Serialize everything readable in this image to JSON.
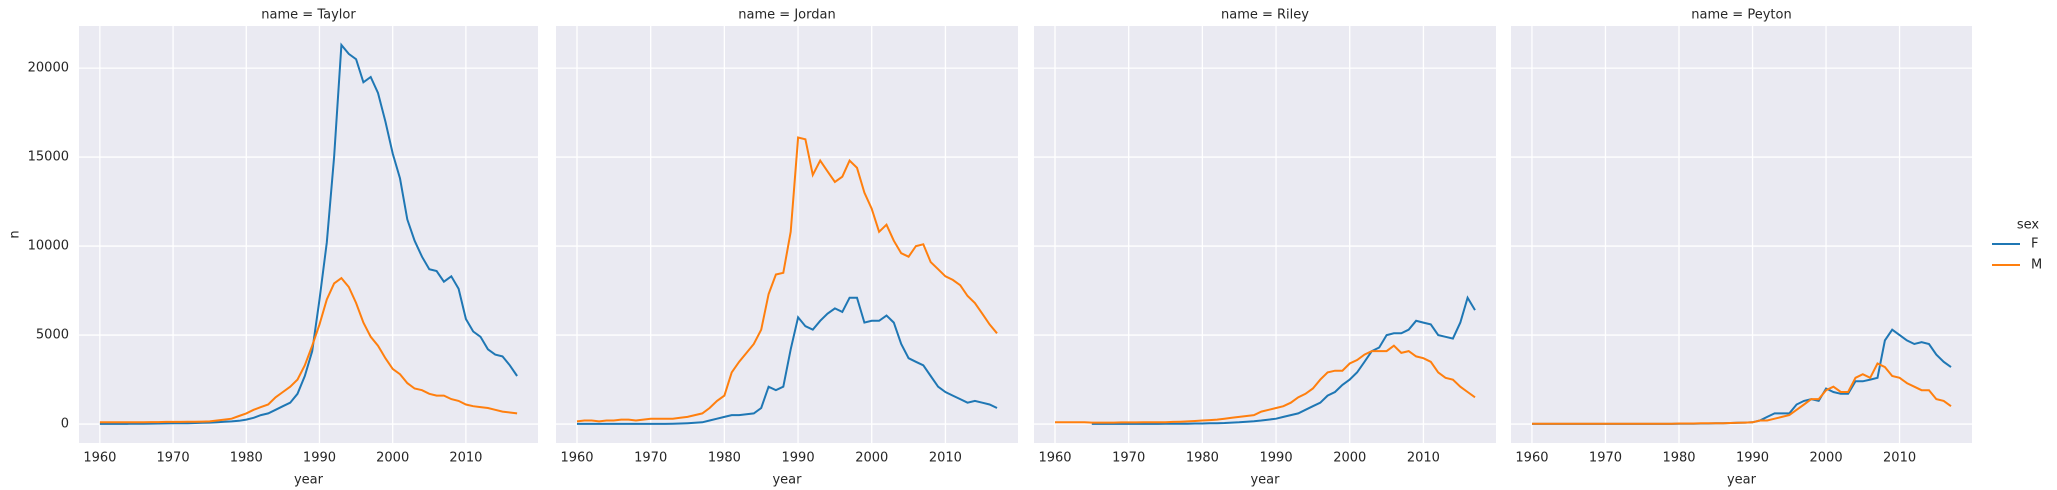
{
  "chart_data": [
    {
      "type": "line",
      "title": "name = Taylor",
      "xlabel": "year",
      "ylabel": "n",
      "legend_title": "sex",
      "legend": "right",
      "grid": true,
      "xlim": [
        1957.15,
        2019.85
      ],
      "xticks": [
        1960,
        1970,
        1980,
        1990,
        2000,
        2010
      ],
      "ylim": [
        -1065,
        22365
      ],
      "yticks": [
        0,
        5000,
        10000,
        15000,
        20000
      ],
      "x": [
        1960,
        1961,
        1962,
        1963,
        1964,
        1965,
        1966,
        1967,
        1968,
        1969,
        1970,
        1971,
        1972,
        1973,
        1974,
        1975,
        1976,
        1977,
        1978,
        1979,
        1980,
        1981,
        1982,
        1983,
        1984,
        1985,
        1986,
        1987,
        1988,
        1989,
        1990,
        1991,
        1992,
        1993,
        1994,
        1995,
        1996,
        1997,
        1998,
        1999,
        2000,
        2001,
        2002,
        2003,
        2004,
        2005,
        2006,
        2007,
        2008,
        2009,
        2010,
        2011,
        2012,
        2013,
        2014,
        2015,
        2016,
        2017
      ],
      "series": [
        {
          "name": "F",
          "color": "#1f77b4",
          "values": [
            10,
            10,
            10,
            10,
            15,
            15,
            20,
            25,
            30,
            35,
            40,
            45,
            50,
            60,
            70,
            80,
            100,
            130,
            150,
            180,
            250,
            350,
            500,
            600,
            800,
            1000,
            1200,
            1700,
            2700,
            4100,
            7000,
            10200,
            15000,
            21300,
            20800,
            20500,
            19200,
            19500,
            18600,
            17000,
            15200,
            13800,
            11500,
            10300,
            9400,
            8700,
            8600,
            8000,
            8300,
            7600,
            5900,
            5200,
            4900,
            4200,
            3900,
            3800,
            3300,
            2700
          ]
        },
        {
          "name": "M",
          "color": "#ff7f0e",
          "values": [
            100,
            100,
            100,
            100,
            100,
            100,
            100,
            110,
            110,
            120,
            120,
            120,
            130,
            130,
            140,
            150,
            200,
            250,
            300,
            450,
            600,
            800,
            950,
            1100,
            1500,
            1800,
            2100,
            2500,
            3300,
            4400,
            5600,
            7000,
            7900,
            8200,
            7700,
            6800,
            5700,
            4900,
            4400,
            3700,
            3100,
            2800,
            2300,
            2000,
            1900,
            1700,
            1600,
            1600,
            1400,
            1300,
            1100,
            1000,
            950,
            900,
            800,
            700,
            650,
            600
          ]
        }
      ]
    },
    {
      "type": "line",
      "title": "name = Jordan",
      "xlabel": "year",
      "grid": true,
      "xlim": [
        1957.15,
        2019.85
      ],
      "xticks": [
        1960,
        1970,
        1980,
        1990,
        2000,
        2010
      ],
      "ylim": [
        -1065,
        22365
      ],
      "yticks": [
        0,
        5000,
        10000,
        15000,
        20000
      ],
      "x": [
        1960,
        1961,
        1962,
        1963,
        1964,
        1965,
        1966,
        1967,
        1968,
        1969,
        1970,
        1971,
        1972,
        1973,
        1974,
        1975,
        1976,
        1977,
        1978,
        1979,
        1980,
        1981,
        1982,
        1983,
        1984,
        1985,
        1986,
        1987,
        1988,
        1989,
        1990,
        1991,
        1992,
        1993,
        1994,
        1995,
        1996,
        1997,
        1998,
        1999,
        2000,
        2001,
        2002,
        2003,
        2004,
        2005,
        2006,
        2007,
        2008,
        2009,
        2010,
        2011,
        2012,
        2013,
        2014,
        2015,
        2016,
        2017
      ],
      "series": [
        {
          "name": "F",
          "color": "#1f77b4",
          "values": [
            10,
            10,
            10,
            10,
            10,
            10,
            10,
            10,
            10,
            10,
            10,
            10,
            10,
            20,
            30,
            50,
            70,
            100,
            200,
            300,
            400,
            500,
            500,
            550,
            600,
            900,
            2100,
            1900,
            2100,
            4200,
            6000,
            5500,
            5300,
            5800,
            6200,
            6500,
            6300,
            7100,
            7100,
            5700,
            5800,
            5800,
            6100,
            5700,
            4500,
            3700,
            3500,
            3300,
            2700,
            2100,
            1800,
            1600,
            1400,
            1200,
            1300,
            1200,
            1100,
            900
          ]
        },
        {
          "name": "M",
          "color": "#ff7f0e",
          "values": [
            150,
            200,
            200,
            150,
            200,
            200,
            250,
            250,
            200,
            250,
            300,
            300,
            300,
            300,
            350,
            400,
            500,
            600,
            900,
            1300,
            1600,
            2900,
            3500,
            4000,
            4500,
            5300,
            7300,
            8400,
            8500,
            10800,
            16100,
            16000,
            14000,
            14800,
            14200,
            13600,
            13900,
            14800,
            14400,
            13000,
            12100,
            10800,
            11200,
            10300,
            9600,
            9400,
            10000,
            10100,
            9100,
            8700,
            8300,
            8100,
            7800,
            7200,
            6800,
            6200,
            5600,
            5100
          ]
        }
      ]
    },
    {
      "type": "line",
      "title": "name = Riley",
      "xlabel": "year",
      "grid": true,
      "xlim": [
        1957.15,
        2019.85
      ],
      "xticks": [
        1960,
        1970,
        1980,
        1990,
        2000,
        2010
      ],
      "ylim": [
        -1065,
        22365
      ],
      "yticks": [
        0,
        5000,
        10000,
        15000,
        20000
      ],
      "x": [
        1960,
        1961,
        1962,
        1963,
        1964,
        1965,
        1966,
        1967,
        1968,
        1969,
        1970,
        1971,
        1972,
        1973,
        1974,
        1975,
        1976,
        1977,
        1978,
        1979,
        1980,
        1981,
        1982,
        1983,
        1984,
        1985,
        1986,
        1987,
        1988,
        1989,
        1990,
        1991,
        1992,
        1993,
        1994,
        1995,
        1996,
        1997,
        1998,
        1999,
        2000,
        2001,
        2002,
        2003,
        2004,
        2005,
        2006,
        2007,
        2008,
        2009,
        2010,
        2011,
        2012,
        2013,
        2014,
        2015,
        2016,
        2017
      ],
      "series": [
        {
          "name": "F",
          "color": "#1f77b4",
          "values": [
            null,
            null,
            null,
            null,
            null,
            10,
            10,
            10,
            10,
            10,
            10,
            10,
            10,
            10,
            10,
            20,
            20,
            20,
            20,
            30,
            30,
            40,
            50,
            60,
            80,
            100,
            130,
            160,
            200,
            250,
            300,
            400,
            500,
            600,
            800,
            1000,
            1200,
            1600,
            1800,
            2200,
            2500,
            2900,
            3500,
            4100,
            4300,
            5000,
            5100,
            5100,
            5300,
            5800,
            5700,
            5600,
            5000,
            4900,
            4800,
            5700,
            7100,
            6400
          ]
        },
        {
          "name": "M",
          "color": "#ff7f0e",
          "values": [
            100,
            100,
            100,
            100,
            100,
            80,
            80,
            80,
            80,
            90,
            90,
            90,
            100,
            100,
            100,
            100,
            120,
            130,
            150,
            170,
            200,
            220,
            250,
            300,
            350,
            400,
            450,
            500,
            700,
            800,
            900,
            1000,
            1200,
            1500,
            1700,
            2000,
            2500,
            2900,
            3000,
            3000,
            3400,
            3600,
            3900,
            4100,
            4100,
            4100,
            4400,
            4000,
            4100,
            3800,
            3700,
            3500,
            2900,
            2600,
            2500,
            2100,
            1800,
            1500
          ]
        }
      ]
    },
    {
      "type": "line",
      "title": "name = Peyton",
      "xlabel": "year",
      "grid": true,
      "xlim": [
        1957.15,
        2019.85
      ],
      "xticks": [
        1960,
        1970,
        1980,
        1990,
        2000,
        2010
      ],
      "ylim": [
        -1065,
        22365
      ],
      "yticks": [
        0,
        5000,
        10000,
        15000,
        20000
      ],
      "x": [
        1960,
        1961,
        1962,
        1963,
        1964,
        1965,
        1966,
        1967,
        1968,
        1969,
        1970,
        1971,
        1972,
        1973,
        1974,
        1975,
        1976,
        1977,
        1978,
        1979,
        1980,
        1981,
        1982,
        1983,
        1984,
        1985,
        1986,
        1987,
        1988,
        1989,
        1990,
        1991,
        1992,
        1993,
        1994,
        1995,
        1996,
        1997,
        1998,
        1999,
        2000,
        2001,
        2002,
        2003,
        2004,
        2005,
        2006,
        2007,
        2008,
        2009,
        2010,
        2011,
        2012,
        2013,
        2014,
        2015,
        2016,
        2017
      ],
      "series": [
        {
          "name": "F",
          "color": "#1f77b4",
          "values": [
            10,
            10,
            10,
            10,
            10,
            10,
            10,
            10,
            10,
            10,
            10,
            10,
            10,
            10,
            10,
            10,
            10,
            10,
            10,
            10,
            20,
            20,
            20,
            30,
            30,
            40,
            50,
            60,
            70,
            80,
            100,
            200,
            400,
            600,
            600,
            600,
            1100,
            1300,
            1400,
            1300,
            2000,
            1800,
            1700,
            1700,
            2400,
            2400,
            2500,
            2600,
            4700,
            5300,
            5000,
            4700,
            4500,
            4600,
            4500,
            3900,
            3500,
            3200
          ]
        },
        {
          "name": "M",
          "color": "#ff7f0e",
          "values": [
            20,
            20,
            20,
            20,
            20,
            20,
            20,
            20,
            20,
            20,
            20,
            20,
            20,
            20,
            20,
            20,
            20,
            20,
            20,
            20,
            30,
            30,
            30,
            40,
            40,
            50,
            50,
            60,
            70,
            80,
            100,
            200,
            200,
            300,
            400,
            500,
            800,
            1100,
            1400,
            1400,
            1900,
            2100,
            1800,
            1800,
            2600,
            2800,
            2600,
            3400,
            3200,
            2700,
            2600,
            2300,
            2100,
            1900,
            1900,
            1400,
            1300,
            1000
          ]
        }
      ]
    }
  ]
}
